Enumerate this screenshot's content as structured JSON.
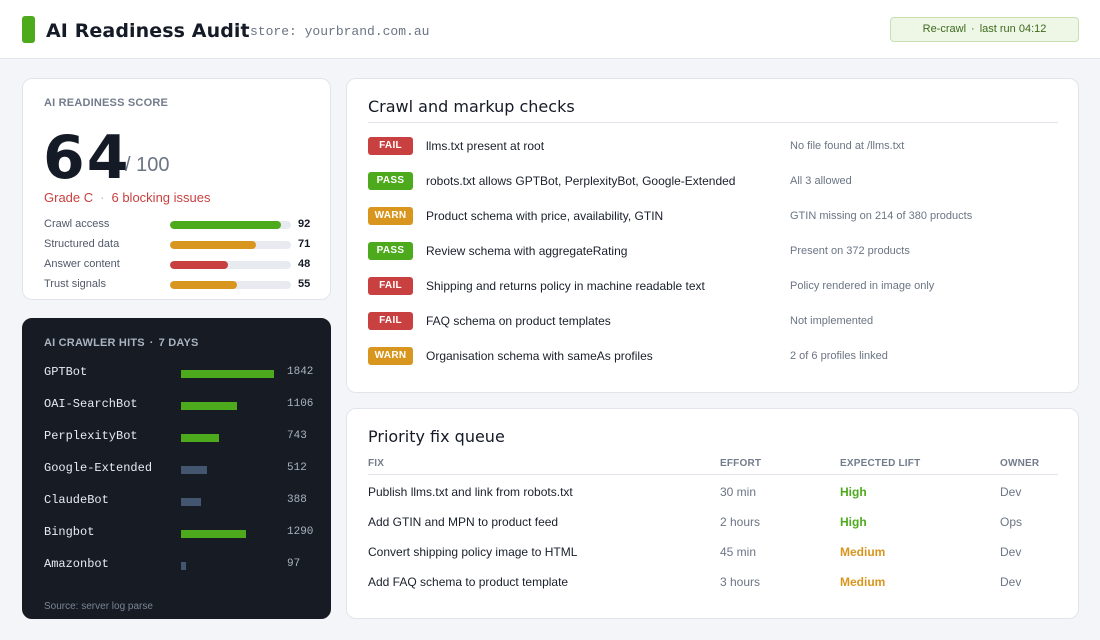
{
  "header": {
    "title": "AI Readiness Audit",
    "store": "store: yourbrand.com.au",
    "recrawl_label": "Re-crawl",
    "last_run": "last run 04:12"
  },
  "score": {
    "eyebrow": "AI READINESS SCORE",
    "value": "64",
    "max": "/ 100",
    "grade": "Grade C",
    "blocking": "6 blocking issues",
    "metrics": [
      {
        "label": "Crawl access",
        "value": "92",
        "percent": 92,
        "color": "#4caa1c"
      },
      {
        "label": "Structured data",
        "value": "71",
        "percent": 71,
        "color": "#d8961f"
      },
      {
        "label": "Answer content",
        "value": "48",
        "percent": 48,
        "color": "#c94040"
      },
      {
        "label": "Trust signals",
        "value": "55",
        "percent": 55,
        "color": "#d8961f"
      }
    ]
  },
  "crawlers": {
    "title": "AI CRAWLER HITS",
    "period": "7 DAYS",
    "source": "Source: server log parse",
    "max_hits": 1842,
    "bots": [
      {
        "name": "GPTBot",
        "hits": "1842",
        "value": 1842,
        "color": "#4caa1c"
      },
      {
        "name": "OAI-SearchBot",
        "hits": "1106",
        "value": 1106,
        "color": "#4caa1c"
      },
      {
        "name": "PerplexityBot",
        "hits": "743",
        "value": 743,
        "color": "#4caa1c"
      },
      {
        "name": "Google-Extended",
        "hits": "512",
        "value": 512,
        "color": "#44566f"
      },
      {
        "name": "ClaudeBot",
        "hits": "388",
        "value": 388,
        "color": "#44566f"
      },
      {
        "name": "Bingbot",
        "hits": "1290",
        "value": 1290,
        "color": "#4caa1c"
      },
      {
        "name": "Amazonbot",
        "hits": "97",
        "value": 97,
        "color": "#44566f"
      }
    ]
  },
  "checks": {
    "title": "Crawl and markup checks",
    "items": [
      {
        "status": "FAIL",
        "kind": "fail",
        "text": "llms.txt present at root",
        "note": "No file found at /llms.txt"
      },
      {
        "status": "PASS",
        "kind": "pass",
        "text": "robots.txt allows GPTBot, PerplexityBot, Google-Extended",
        "note": "All 3 allowed"
      },
      {
        "status": "WARN",
        "kind": "warn",
        "text": "Product schema with price, availability, GTIN",
        "note": "GTIN missing on 214 of 380 products"
      },
      {
        "status": "PASS",
        "kind": "pass",
        "text": "Review schema with aggregateRating",
        "note": "Present on 372 products"
      },
      {
        "status": "FAIL",
        "kind": "fail",
        "text": "Shipping and returns policy in machine readable text",
        "note": "Policy rendered in image only"
      },
      {
        "status": "FAIL",
        "kind": "fail",
        "text": "FAQ schema on product templates",
        "note": "Not implemented"
      },
      {
        "status": "WARN",
        "kind": "warn",
        "text": "Organisation schema with sameAs profiles",
        "note": "2 of 6 profiles linked"
      }
    ]
  },
  "queue": {
    "title": "Priority fix queue",
    "headers": {
      "fix": "FIX",
      "effort": "EFFORT",
      "lift": "EXPECTED LIFT",
      "owner": "OWNER"
    },
    "rows": [
      {
        "fix": "Publish llms.txt and link from robots.txt",
        "effort": "30 min",
        "lift": "High",
        "lift_kind": "high",
        "owner": "Dev"
      },
      {
        "fix": "Add GTIN and MPN to product feed",
        "effort": "2 hours",
        "lift": "High",
        "lift_kind": "high",
        "owner": "Ops"
      },
      {
        "fix": "Convert shipping policy image to HTML",
        "effort": "45 min",
        "lift": "Medium",
        "lift_kind": "medium",
        "owner": "Dev"
      },
      {
        "fix": "Add FAQ schema to product template",
        "effort": "3 hours",
        "lift": "Medium",
        "lift_kind": "medium",
        "owner": "Dev"
      }
    ]
  }
}
